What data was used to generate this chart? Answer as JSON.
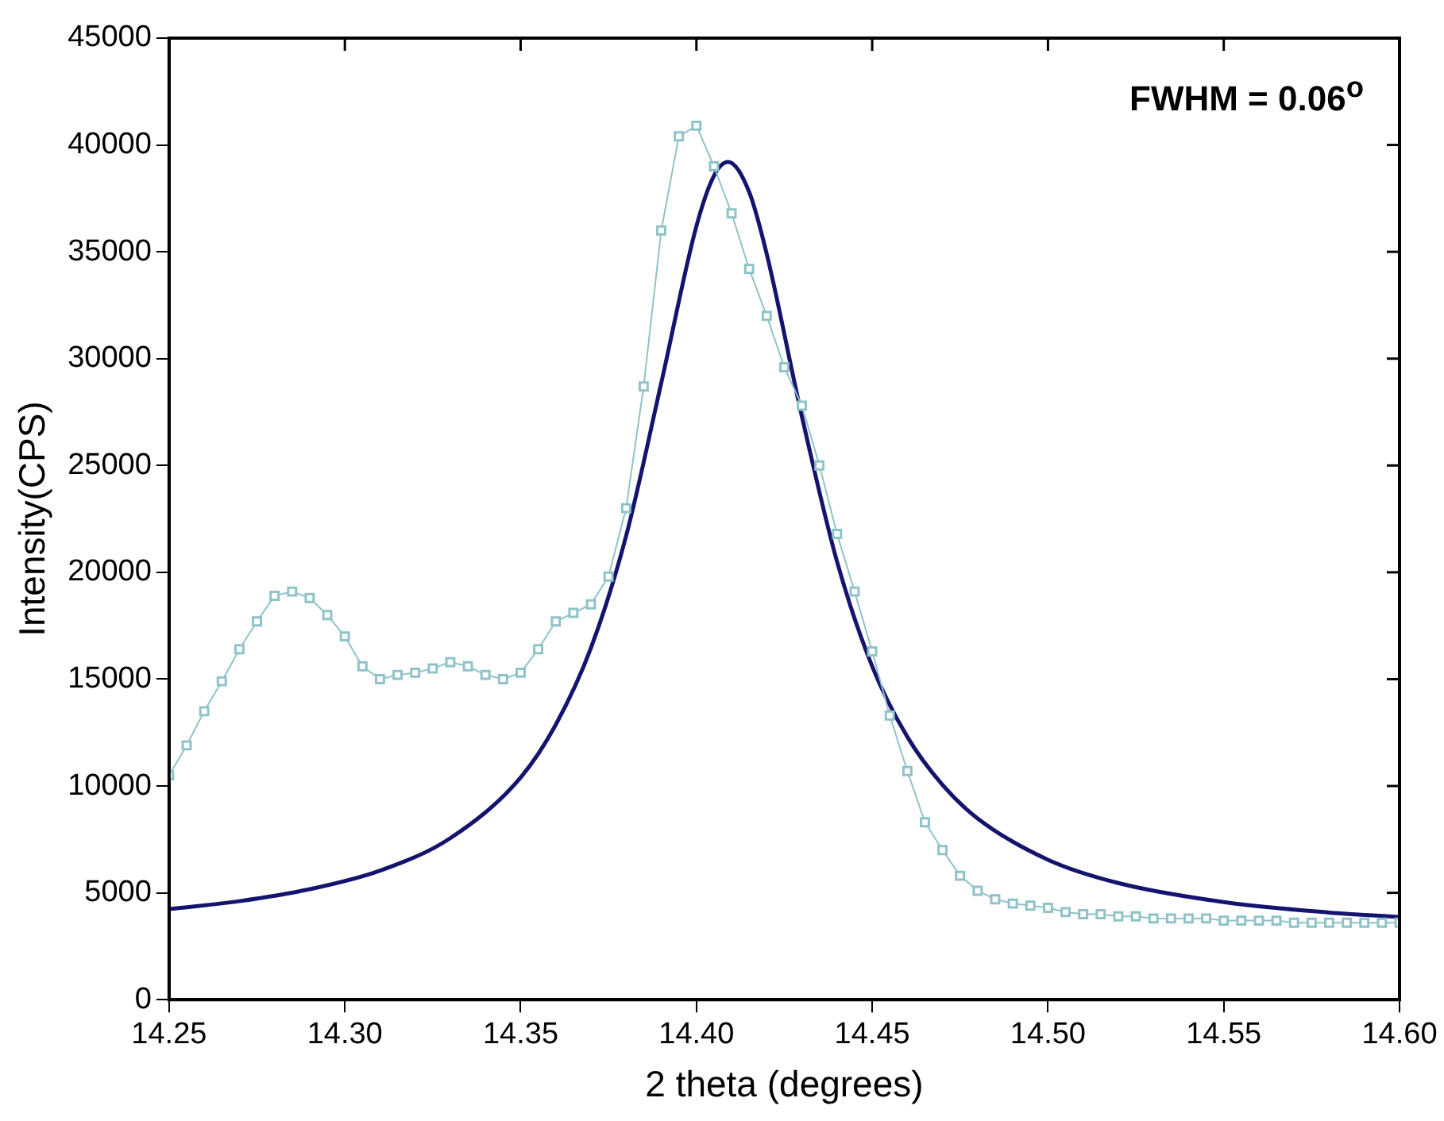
{
  "chart_data": {
    "type": "line",
    "xlabel": "2 theta (degrees)",
    "ylabel": "Intensity(CPS)",
    "annotations": [
      "FWHM = 0.06$^{o}$"
    ],
    "xlim": [
      14.25,
      14.6
    ],
    "xticks": [
      14.25,
      {
        "value": 14.3,
        "label": "14.30"
      },
      14.35,
      {
        "value": 14.4,
        "label": "14.40"
      },
      14.45,
      {
        "value": 14.5,
        "label": "14.50"
      },
      14.55,
      {
        "value": 14.6,
        "label": "14.60"
      }
    ],
    "ylim": [
      0,
      45000
    ],
    "yticks": [
      0,
      5000,
      10000,
      15000,
      20000,
      25000,
      30000,
      35000,
      40000,
      45000
    ],
    "grid": false,
    "legend": false,
    "series": [
      {
        "type": "line",
        "marker": "square",
        "color": "#8fc3c8",
        "x": [
          14.25,
          14.255,
          14.26,
          14.265,
          14.27,
          14.275,
          14.28,
          14.285,
          14.29,
          14.295,
          14.3,
          14.305,
          14.31,
          14.315,
          14.32,
          14.325,
          14.33,
          14.335,
          14.34,
          14.345,
          14.35,
          14.355,
          14.36,
          14.365,
          14.37,
          14.375,
          14.38,
          14.385,
          14.39,
          14.395,
          14.4,
          14.405,
          14.41,
          14.415,
          14.42,
          14.425,
          14.43,
          14.435,
          14.44,
          14.445,
          14.45,
          14.455,
          14.46,
          14.465,
          14.47,
          14.475,
          14.48,
          14.485,
          14.49,
          14.495,
          14.5,
          14.505,
          14.51,
          14.515,
          14.52,
          14.525,
          14.53,
          14.535,
          14.54,
          14.545,
          14.55,
          14.555,
          14.56,
          14.565,
          14.57,
          14.575,
          14.58,
          14.585,
          14.59,
          14.595,
          14.6
        ],
        "values": [
          10500,
          11900,
          13500,
          14900,
          16400,
          17700,
          18900,
          19100,
          18800,
          18000,
          17000,
          15600,
          15000,
          15200,
          15300,
          15500,
          15800,
          15600,
          15200,
          15000,
          15300,
          16400,
          17700,
          18100,
          18500,
          19800,
          23000,
          28700,
          36000,
          40400,
          40900,
          39000,
          36800,
          34200,
          32000,
          29600,
          27800,
          25000,
          21800,
          19100,
          16300,
          13300,
          10700,
          8300,
          7000,
          5800,
          5100,
          4700,
          4500,
          4400,
          4300,
          4100,
          4000,
          4000,
          3900,
          3900,
          3800,
          3800,
          3800,
          3800,
          3700,
          3700,
          3700,
          3700,
          3600,
          3600,
          3600,
          3600,
          3600,
          3600,
          3600
        ]
      },
      {
        "type": "line",
        "marker": "none",
        "color": "#14146e",
        "x": [
          14.25,
          14.27,
          14.29,
          14.31,
          14.33,
          14.35,
          14.36,
          14.37,
          14.38,
          14.39,
          14.4,
          14.405,
          14.409,
          14.415,
          14.42,
          14.43,
          14.44,
          14.45,
          14.46,
          14.47,
          14.48,
          14.5,
          14.52,
          14.55,
          14.58,
          14.6
        ],
        "values": [
          4240,
          4610,
          5170,
          6040,
          7560,
          10400,
          12870,
          16460,
          21700,
          28860,
          36200,
          38560,
          39200,
          37800,
          34900,
          27300,
          20500,
          15600,
          12300,
          10050,
          8480,
          6550,
          5460,
          4570,
          4080,
          3870
        ]
      }
    ]
  }
}
